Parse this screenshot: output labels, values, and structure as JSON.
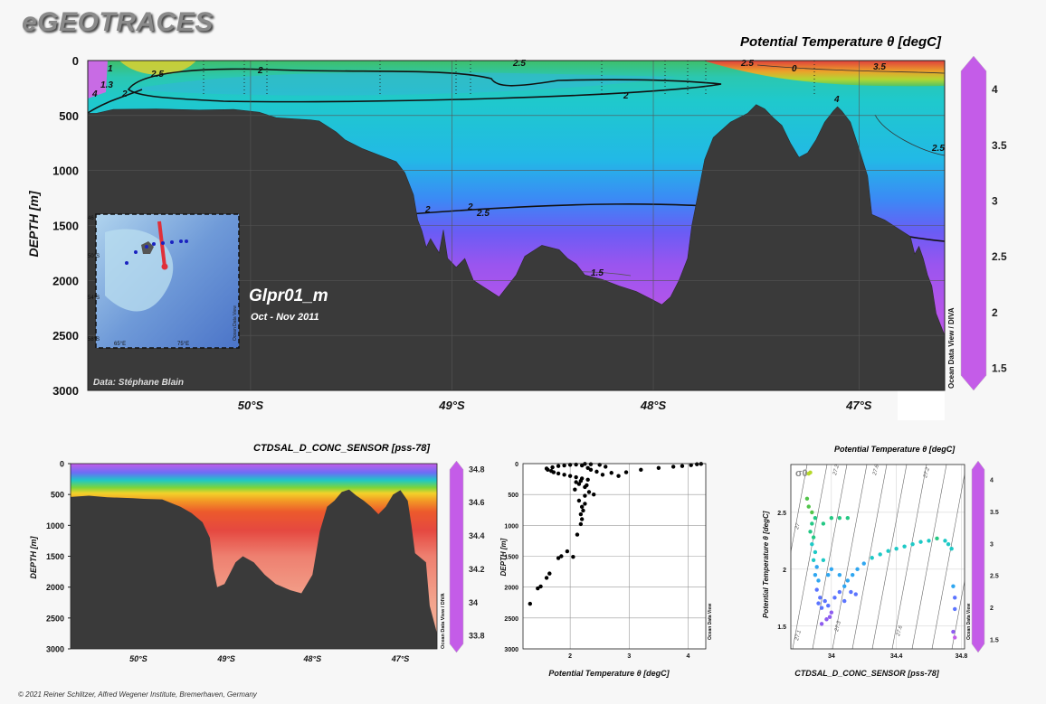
{
  "brand": "eGEOTRACES",
  "credit": "© 2021 Reiner Schlitzer, Alfred Wegener Institute, Bremerhaven, Germany",
  "chart_data": [
    {
      "type": "heatmap",
      "title": "Potential Temperature θ [degC]",
      "ylabel": "DEPTH [m]",
      "x_ticks": [
        "50°S",
        "49°S",
        "48°S",
        "47°S"
      ],
      "y_ticks": [
        0,
        500,
        1000,
        1500,
        2000,
        2500,
        3000
      ],
      "ylim": [
        0,
        3000
      ],
      "colorbar_ticks": [
        1.5,
        2,
        2.5,
        3,
        3.5,
        4
      ],
      "colorbar_range": [
        1.3,
        4.3
      ],
      "contour_labels": [
        "4",
        "1.3",
        "1",
        "2",
        "2.5",
        "2",
        "2.5",
        "2",
        "2.5",
        "0",
        "3.5",
        "4",
        "2.5",
        "2",
        "2.5",
        "2",
        "1.5"
      ],
      "section_label": "Glpr01_m",
      "period": "Oct - Nov 2011",
      "data_credit": "Data: Stéphane Blain",
      "side_label": "Ocean Data View / DIVA",
      "inset_map": {
        "lat_labels": [
          "46",
          "50°S",
          "54°S",
          "58°S"
        ],
        "lon_labels": [
          "65°E",
          "75°E"
        ],
        "side_label": "Ocean Data View"
      },
      "grid": true
    },
    {
      "type": "heatmap",
      "title": "CTDSAL_D_CONC_SENSOR [pss-78]",
      "ylabel": "DEPTH [m]",
      "x_ticks": [
        "50°S",
        "49°S",
        "48°S",
        "47°S"
      ],
      "y_ticks": [
        0,
        500,
        1000,
        1500,
        2000,
        2500,
        3000
      ],
      "ylim": [
        0,
        3000
      ],
      "colorbar_ticks": [
        33.8,
        34,
        34.2,
        34.4,
        34.6,
        34.8
      ],
      "colorbar_range": [
        33.7,
        34.85
      ],
      "side_label": "Ocean Data View / DIVA",
      "grid": false
    },
    {
      "type": "scatter",
      "title": "",
      "xlabel": "Potential Temperature θ [degC]",
      "ylabel": "DEPTH [m]",
      "x_ticks": [
        2,
        3,
        4
      ],
      "y_ticks": [
        0,
        500,
        1000,
        1500,
        2000,
        2500,
        3000
      ],
      "xlim": [
        1.2,
        4.3
      ],
      "ylim": [
        0,
        3000
      ],
      "side_label": "Ocean Data View",
      "series": [
        {
          "points": [
            [
              1.32,
              2270
            ],
            [
              1.45,
              2020
            ],
            [
              1.5,
              1990
            ],
            [
              1.6,
              1850
            ],
            [
              1.65,
              1780
            ],
            [
              1.8,
              1530
            ],
            [
              1.85,
              1500
            ],
            [
              1.95,
              1420
            ],
            [
              2.05,
              1510
            ],
            [
              2.12,
              1150
            ],
            [
              2.18,
              980
            ],
            [
              2.2,
              900
            ],
            [
              2.18,
              820
            ],
            [
              2.22,
              760
            ],
            [
              2.2,
              700
            ],
            [
              2.25,
              650
            ],
            [
              2.15,
              600
            ],
            [
              2.25,
              520
            ],
            [
              2.32,
              460
            ],
            [
              2.08,
              420
            ],
            [
              2.25,
              380
            ],
            [
              2.28,
              350
            ],
            [
              2.4,
              500
            ],
            [
              2.15,
              330
            ],
            [
              2.1,
              300
            ],
            [
              2.18,
              280
            ],
            [
              2.3,
              260
            ],
            [
              2.2,
              240
            ],
            [
              2.1,
              220
            ],
            [
              2.0,
              200
            ],
            [
              1.9,
              180
            ],
            [
              1.8,
              160
            ],
            [
              1.72,
              140
            ],
            [
              1.68,
              120
            ],
            [
              1.62,
              100
            ],
            [
              1.6,
              80
            ],
            [
              1.7,
              60
            ],
            [
              1.8,
              40
            ],
            [
              1.9,
              30
            ],
            [
              2.0,
              20
            ],
            [
              2.1,
              15
            ],
            [
              2.2,
              30
            ],
            [
              2.3,
              70
            ],
            [
              2.35,
              100
            ],
            [
              2.45,
              130
            ],
            [
              2.55,
              180
            ],
            [
              2.7,
              150
            ],
            [
              2.82,
              200
            ],
            [
              2.95,
              140
            ],
            [
              3.2,
              100
            ],
            [
              3.5,
              70
            ],
            [
              3.75,
              50
            ],
            [
              3.9,
              40
            ],
            [
              4.05,
              25
            ],
            [
              4.15,
              10
            ],
            [
              4.22,
              5
            ],
            [
              2.6,
              50
            ],
            [
              2.5,
              20
            ],
            [
              2.35,
              10
            ],
            [
              2.25,
              5
            ]
          ]
        }
      ],
      "grid": true
    },
    {
      "type": "scatter",
      "title": "Potential Temperature θ [degC]",
      "xlabel": "CTDSAL_D_CONC_SENSOR [pss-78]",
      "ylabel": "Potential Temperature θ [degC]",
      "x_ticks": [
        34,
        34.4,
        34.8
      ],
      "y_ticks": [
        1.5,
        2,
        2.5
      ],
      "xlim": [
        33.75,
        34.82
      ],
      "ylim": [
        1.3,
        2.92
      ],
      "colorbar_ticks": [
        1.5,
        2,
        2.5,
        3,
        3.5,
        4
      ],
      "colorbar_range": [
        1.3,
        4.3
      ],
      "sigma_label": "σ0",
      "isopycnal_labels": [
        "27.2",
        "27.6",
        "27",
        "27.1",
        "27.3",
        "27.6",
        "27.2"
      ],
      "side_label": "Ocean Data View",
      "series": [
        {
          "points": [
            [
              33.86,
              2.84
            ],
            [
              33.87,
              2.85
            ],
            [
              33.85,
              2.62
            ],
            [
              33.86,
              2.55
            ],
            [
              33.88,
              2.5
            ],
            [
              33.9,
              2.45
            ],
            [
              33.88,
              2.4
            ],
            [
              33.87,
              2.33
            ],
            [
              33.89,
              2.28
            ],
            [
              33.88,
              2.22
            ],
            [
              33.9,
              2.15
            ],
            [
              33.89,
              2.08
            ],
            [
              33.91,
              2.02
            ],
            [
              33.9,
              1.95
            ],
            [
              33.92,
              1.9
            ],
            [
              33.91,
              1.82
            ],
            [
              33.93,
              1.75
            ],
            [
              33.92,
              1.7
            ],
            [
              33.94,
              1.66
            ],
            [
              33.96,
              1.72
            ],
            [
              33.98,
              1.68
            ],
            [
              34.0,
              1.62
            ],
            [
              33.97,
              1.56
            ],
            [
              34.02,
              1.75
            ],
            [
              34.05,
              1.8
            ],
            [
              34.08,
              1.85
            ],
            [
              34.1,
              1.9
            ],
            [
              34.13,
              1.95
            ],
            [
              34.16,
              2.0
            ],
            [
              34.2,
              2.05
            ],
            [
              34.25,
              2.1
            ],
            [
              34.3,
              2.13
            ],
            [
              34.35,
              2.16
            ],
            [
              34.4,
              2.18
            ],
            [
              34.45,
              2.2
            ],
            [
              34.5,
              2.22
            ],
            [
              34.55,
              2.24
            ],
            [
              34.6,
              2.25
            ],
            [
              34.65,
              2.27
            ],
            [
              34.7,
              2.25
            ],
            [
              34.72,
              2.22
            ],
            [
              34.74,
              2.18
            ],
            [
              34.75,
              1.85
            ],
            [
              34.76,
              1.75
            ],
            [
              34.76,
              1.65
            ],
            [
              34.75,
              1.45
            ],
            [
              34.76,
              1.4
            ],
            [
              33.95,
              2.4
            ],
            [
              34.0,
              2.45
            ],
            [
              34.05,
              2.45
            ],
            [
              34.1,
              2.45
            ],
            [
              33.95,
              2.08
            ],
            [
              34.0,
              2.0
            ],
            [
              34.05,
              1.95
            ],
            [
              33.98,
              1.95
            ],
            [
              34.12,
              1.8
            ],
            [
              34.08,
              1.72
            ],
            [
              34.15,
              1.78
            ],
            [
              33.94,
              1.52
            ],
            [
              33.99,
              1.58
            ]
          ]
        }
      ],
      "grid": true
    }
  ]
}
